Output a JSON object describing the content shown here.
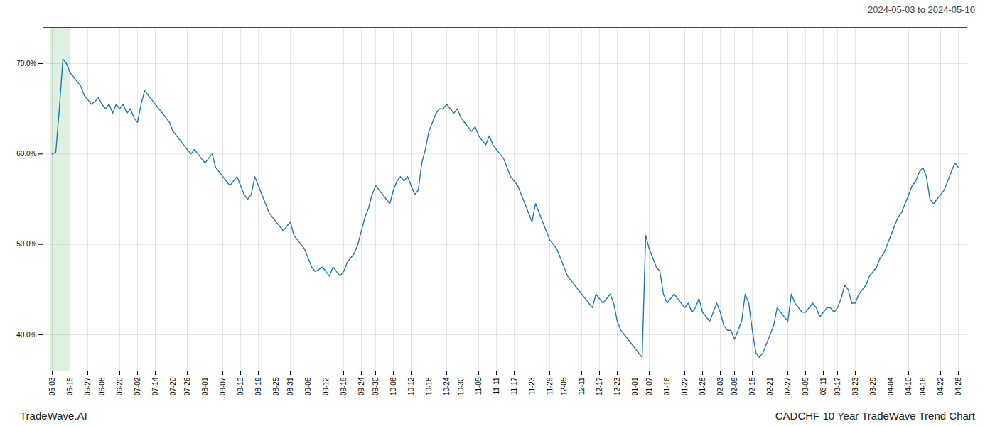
{
  "chart_data": {
    "type": "line",
    "title": "CADCHF 10 Year TradeWave Trend Chart",
    "subtitle": "2024-05-03 to 2024-05-10",
    "annotations": [
      "TradeWave.AI"
    ],
    "categories": [
      "05-03",
      null,
      null,
      null,
      null,
      "05-15",
      null,
      null,
      null,
      null,
      "05-27",
      null,
      null,
      null,
      "06-08",
      null,
      null,
      null,
      null,
      "06-20",
      null,
      null,
      null,
      null,
      "07-02",
      null,
      null,
      null,
      null,
      "07-14",
      null,
      null,
      null,
      null,
      "07-20",
      null,
      null,
      null,
      "07-26",
      null,
      null,
      null,
      null,
      "08-01",
      null,
      null,
      null,
      null,
      "08-07",
      null,
      null,
      null,
      null,
      "08-13",
      null,
      null,
      null,
      null,
      "08-19",
      null,
      null,
      null,
      null,
      "08-25",
      null,
      null,
      null,
      "08-31",
      null,
      null,
      null,
      null,
      "09-06",
      null,
      null,
      null,
      null,
      "09-12",
      null,
      null,
      null,
      null,
      "09-18",
      null,
      null,
      null,
      null,
      "09-24",
      null,
      null,
      null,
      "09-30",
      null,
      null,
      null,
      null,
      "10-06",
      null,
      null,
      null,
      null,
      "10-12",
      null,
      null,
      null,
      null,
      "10-18",
      null,
      null,
      null,
      null,
      "10-24",
      null,
      null,
      null,
      "10-30",
      null,
      null,
      null,
      null,
      "11-05",
      null,
      null,
      null,
      null,
      "11-11",
      null,
      null,
      null,
      null,
      "11-17",
      null,
      null,
      null,
      null,
      "11-23",
      null,
      null,
      null,
      null,
      "11-29",
      null,
      null,
      null,
      "12-05",
      null,
      null,
      null,
      null,
      "12-11",
      null,
      null,
      null,
      null,
      "12-17",
      null,
      null,
      null,
      null,
      "12-23",
      null,
      null,
      null,
      null,
      "01-01",
      null,
      null,
      null,
      "01-07",
      null,
      null,
      null,
      null,
      "01-16",
      null,
      null,
      null,
      null,
      "01-22",
      null,
      null,
      null,
      null,
      "01-28",
      null,
      null,
      null,
      null,
      "02-03",
      null,
      null,
      null,
      "02-09",
      null,
      null,
      null,
      null,
      "02-15",
      null,
      null,
      null,
      null,
      "02-21",
      null,
      null,
      null,
      null,
      "02-27",
      null,
      null,
      null,
      null,
      "03-05",
      null,
      null,
      null,
      null,
      "03-11",
      null,
      null,
      null,
      "03-17",
      null,
      null,
      null,
      null,
      "03-23",
      null,
      null,
      null,
      null,
      "03-29",
      null,
      null,
      null,
      null,
      "04-04",
      null,
      null,
      null,
      null,
      "04-10",
      null,
      null,
      null,
      "04-16",
      null,
      null,
      null,
      null,
      "04-22",
      null,
      null,
      null,
      null,
      "04-28"
    ],
    "values": [
      60.0,
      60.2,
      65.0,
      70.5,
      70.0,
      69.0,
      68.5,
      68.0,
      67.5,
      66.5,
      66.0,
      65.5,
      65.8,
      66.2,
      65.5,
      65.0,
      65.5,
      64.5,
      65.5,
      65.0,
      65.5,
      64.5,
      65.0,
      64.0,
      63.5,
      65.5,
      67.0,
      66.5,
      66.0,
      65.5,
      65.0,
      64.5,
      64.0,
      63.5,
      62.5,
      62.0,
      61.5,
      61.0,
      60.5,
      60.0,
      60.5,
      60.0,
      59.5,
      59.0,
      59.5,
      60.0,
      58.5,
      58.0,
      57.5,
      57.0,
      56.5,
      57.0,
      57.5,
      56.5,
      55.5,
      55.0,
      55.5,
      57.5,
      56.5,
      55.5,
      54.5,
      53.5,
      53.0,
      52.5,
      52.0,
      51.5,
      52.0,
      52.5,
      51.0,
      50.5,
      50.0,
      49.5,
      48.5,
      47.5,
      47.0,
      47.2,
      47.5,
      47.0,
      46.5,
      47.5,
      47.0,
      46.5,
      47.0,
      48.0,
      48.5,
      49.0,
      50.0,
      51.5,
      53.0,
      54.0,
      55.5,
      56.5,
      56.0,
      55.5,
      55.0,
      54.5,
      56.0,
      57.0,
      57.5,
      57.0,
      57.5,
      56.5,
      55.5,
      56.0,
      59.0,
      60.5,
      62.5,
      63.5,
      64.5,
      65.0,
      65.0,
      65.5,
      65.0,
      64.5,
      65.0,
      64.0,
      63.5,
      63.0,
      62.5,
      63.0,
      62.0,
      61.5,
      61.0,
      62.0,
      61.0,
      60.5,
      60.0,
      59.5,
      58.5,
      57.5,
      57.0,
      56.5,
      55.5,
      54.5,
      53.5,
      52.5,
      54.5,
      53.5,
      52.5,
      51.5,
      50.5,
      50.0,
      49.5,
      48.5,
      47.5,
      46.5,
      46.0,
      45.5,
      45.0,
      44.5,
      44.0,
      43.5,
      43.0,
      44.5,
      44.0,
      43.5,
      44.0,
      44.5,
      43.5,
      41.5,
      40.5,
      40.0,
      39.5,
      39.0,
      38.5,
      38.0,
      37.5,
      51.0,
      49.5,
      48.5,
      47.5,
      47.0,
      44.5,
      43.5,
      44.0,
      44.5,
      44.0,
      43.5,
      43.0,
      43.5,
      42.5,
      43.0,
      44.0,
      42.5,
      42.0,
      41.5,
      42.5,
      43.5,
      42.5,
      41.0,
      40.5,
      40.5,
      39.5,
      40.5,
      41.5,
      44.5,
      43.5,
      40.5,
      38.0,
      37.5,
      38.0,
      39.0,
      40.0,
      41.0,
      43.0,
      42.5,
      42.0,
      41.5,
      44.5,
      43.5,
      43.0,
      42.5,
      42.5,
      43.0,
      43.5,
      43.0,
      42.0,
      42.5,
      43.0,
      43.0,
      42.5,
      43.0,
      44.0,
      45.5,
      45.0,
      43.5,
      43.5,
      44.5,
      45.0,
      45.5,
      46.5,
      47.0,
      47.5,
      48.5,
      49.0,
      50.0,
      51.0,
      52.0,
      53.0,
      53.5,
      54.5,
      55.5,
      56.5,
      57.0,
      58.0,
      58.5,
      57.5,
      55.0,
      54.5,
      55.0,
      55.5,
      56.0,
      57.0,
      58.0,
      59.0,
      58.5
    ],
    "color": "#1f77b4",
    "ylim": [
      36.0,
      74.0
    ],
    "yticks": [
      {
        "value": 40.0,
        "label": "40.0%"
      },
      {
        "value": 50.0,
        "label": "50.0%"
      },
      {
        "value": 60.0,
        "label": "60.0%"
      },
      {
        "value": 70.0,
        "label": "70.0%"
      }
    ],
    "grid": true
  }
}
